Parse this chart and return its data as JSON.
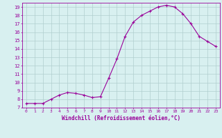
{
  "x": [
    0,
    1,
    2,
    3,
    4,
    5,
    6,
    7,
    8,
    9,
    10,
    11,
    12,
    13,
    14,
    15,
    16,
    17,
    18,
    19,
    20,
    21,
    22,
    23
  ],
  "y": [
    7.5,
    7.5,
    7.5,
    8.0,
    8.5,
    8.8,
    8.7,
    8.5,
    8.2,
    8.3,
    10.5,
    12.8,
    15.5,
    17.2,
    18.0,
    18.5,
    19.0,
    19.2,
    19.0,
    18.2,
    17.0,
    15.5,
    14.9,
    14.3
  ],
  "line_color": "#990099",
  "marker": "+",
  "marker_size": 3,
  "bg_color": "#d8f0f0",
  "grid_color": "#b0cece",
  "xlabel": "Windchill (Refroidissement éolien,°C)",
  "xlabel_color": "#990099",
  "tick_color": "#990099",
  "xlim": [
    -0.5,
    23.5
  ],
  "ylim": [
    7,
    19.5
  ],
  "yticks": [
    7,
    8,
    9,
    10,
    11,
    12,
    13,
    14,
    15,
    16,
    17,
    18,
    19
  ],
  "xticks": [
    0,
    1,
    2,
    3,
    4,
    5,
    6,
    7,
    8,
    9,
    10,
    11,
    12,
    13,
    14,
    15,
    16,
    17,
    18,
    19,
    20,
    21,
    22,
    23
  ],
  "border_color": "#990099"
}
